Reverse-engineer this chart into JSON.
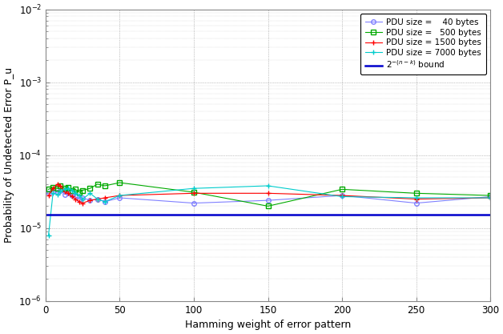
{
  "title": "",
  "xlabel": "Hamming weight of error pattern",
  "ylabel": "Probability of Undetected Error P_u",
  "xlim": [
    0,
    300
  ],
  "ylim_log": [
    -6,
    -2
  ],
  "bound_value": 1.525e-05,
  "series": {
    "pdu40": {
      "label": "PDU size =    40 bytes",
      "color": "#8080ff",
      "x": [
        2,
        5,
        8,
        10,
        13,
        15,
        18,
        20,
        23,
        25,
        30,
        35,
        40,
        50,
        100,
        150,
        200,
        250,
        300
      ],
      "y": [
        3e-05,
        3.2e-05,
        3.1e-05,
        3.3e-05,
        2.9e-05,
        3e-05,
        2.8e-05,
        2.7e-05,
        2.5e-05,
        2.6e-05,
        2.4e-05,
        2.5e-05,
        2.3e-05,
        2.6e-05,
        2.2e-05,
        2.4e-05,
        2.8e-05,
        2.2e-05,
        2.7e-05
      ]
    },
    "pdu500": {
      "label": "PDU size =   500 bytes",
      "color": "#00aa00",
      "x": [
        2,
        5,
        8,
        10,
        13,
        15,
        18,
        20,
        23,
        25,
        30,
        35,
        40,
        50,
        100,
        150,
        200,
        250,
        300
      ],
      "y": [
        3.4e-05,
        3.6e-05,
        3.5e-05,
        3.8e-05,
        3.5e-05,
        3.6e-05,
        3.3e-05,
        3.4e-05,
        3.1e-05,
        3.3e-05,
        3.5e-05,
        4e-05,
        3.8e-05,
        4.2e-05,
        3.1e-05,
        2e-05,
        3.4e-05,
        3e-05,
        2.8e-05
      ]
    },
    "pdu1500": {
      "label": "PDU size = 1500 bytes",
      "color": "#ff0000",
      "x": [
        2,
        5,
        8,
        10,
        13,
        15,
        18,
        20,
        23,
        25,
        30,
        35,
        40,
        50,
        100,
        150,
        200,
        250,
        300
      ],
      "y": [
        2.8e-05,
        3.5e-05,
        4e-05,
        3.8e-05,
        3.2e-05,
        3e-05,
        2.7e-05,
        2.5e-05,
        2.3e-05,
        2.2e-05,
        2.4e-05,
        2.5e-05,
        2.6e-05,
        2.8e-05,
        3e-05,
        3e-05,
        2.8e-05,
        2.5e-05,
        2.6e-05
      ]
    },
    "pdu7000": {
      "label": "PDU size = 7000 bytes",
      "color": "#00cccc",
      "x": [
        2,
        5,
        8,
        10,
        13,
        15,
        18,
        20,
        23,
        25,
        30,
        35,
        40,
        50,
        100,
        150,
        200,
        250,
        300
      ],
      "y": [
        8e-06,
        3e-05,
        2.9e-05,
        3.2e-05,
        3.4e-05,
        3.5e-05,
        3.3e-05,
        3e-05,
        2.8e-05,
        2.5e-05,
        3e-05,
        2.5e-05,
        2.3e-05,
        2.8e-05,
        3.5e-05,
        3.8e-05,
        2.7e-05,
        2.6e-05,
        2.6e-05
      ]
    }
  },
  "legend_fontsize": 7.5,
  "tick_fontsize": 8.5,
  "label_fontsize": 9,
  "background_color": "#ffffff",
  "grid_color": "#444444",
  "grid_dot_size": 0.4,
  "axis_color": "#888888",
  "bound_color": "#0000cc",
  "bound_linewidth": 1.8
}
